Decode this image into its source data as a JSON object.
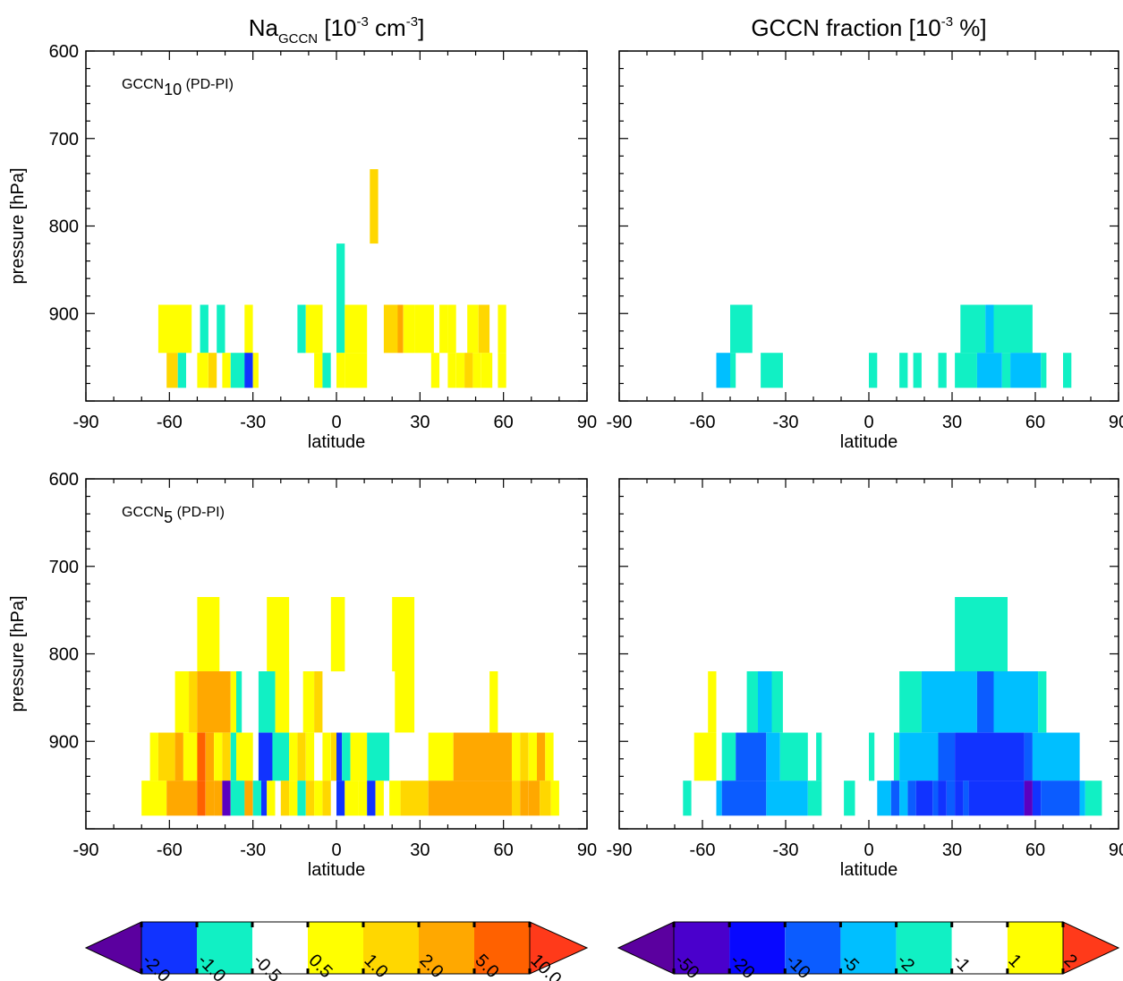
{
  "chart_data": [
    {
      "type": "heatmap",
      "panel": "top-left",
      "title": {
        "base": "Na",
        "sub": "GCCN",
        "rest": " [10",
        "sup1": "-3",
        "mid": " cm",
        "sup2": "-3",
        "end": "]"
      },
      "annotation": {
        "base": "GCCN",
        "sub": "10",
        "rest": " (PD-PI)"
      },
      "xlabel": "latitude",
      "ylabel": "pressure [hPa]",
      "xlim": [
        -90,
        90
      ],
      "ylim": [
        600,
        1000
      ],
      "xticks": [
        "-90",
        "-60",
        "-30",
        "0",
        "30",
        "60",
        "90"
      ],
      "yticks": [
        "600",
        "700",
        "800",
        "900"
      ],
      "scale": "na",
      "rects": [
        [
          -64,
          -52,
          890,
          945,
          "y"
        ],
        [
          -49,
          -46,
          890,
          945,
          "c"
        ],
        [
          -43,
          -40,
          890,
          945,
          "c"
        ],
        [
          -33,
          -30,
          890,
          945,
          "y"
        ],
        [
          -14,
          -11,
          890,
          945,
          "c"
        ],
        [
          -11,
          -5,
          890,
          945,
          "y"
        ],
        [
          0,
          3,
          820,
          945,
          "c"
        ],
        [
          3,
          11,
          890,
          945,
          "y"
        ],
        [
          12,
          15,
          735,
          820,
          "g"
        ],
        [
          17,
          22,
          890,
          945,
          "g"
        ],
        [
          22,
          24,
          890,
          945,
          "o"
        ],
        [
          24,
          28,
          890,
          945,
          "y"
        ],
        [
          28,
          35,
          890,
          945,
          "y"
        ],
        [
          37,
          40,
          890,
          945,
          "y"
        ],
        [
          40,
          43,
          890,
          945,
          "y"
        ],
        [
          47,
          51,
          890,
          945,
          "y"
        ],
        [
          51,
          55,
          890,
          945,
          "g"
        ],
        [
          58,
          61,
          890,
          945,
          "y"
        ],
        [
          -61,
          -57,
          945,
          985,
          "g"
        ],
        [
          -57,
          -54,
          945,
          985,
          "c"
        ],
        [
          -50,
          -46,
          945,
          985,
          "y"
        ],
        [
          -46,
          -43,
          945,
          985,
          "g"
        ],
        [
          -41,
          -38,
          945,
          985,
          "y"
        ],
        [
          -38,
          -33,
          945,
          985,
          "c"
        ],
        [
          -33,
          -30,
          945,
          985,
          "b"
        ],
        [
          -30,
          -28,
          945,
          985,
          "y"
        ],
        [
          -8,
          -5,
          945,
          985,
          "y"
        ],
        [
          -5,
          -2,
          945,
          985,
          "c"
        ],
        [
          0,
          3,
          945,
          985,
          "y"
        ],
        [
          3,
          11,
          945,
          985,
          "y"
        ],
        [
          34,
          37,
          945,
          985,
          "y"
        ],
        [
          40,
          43,
          945,
          985,
          "y"
        ],
        [
          43,
          46,
          945,
          985,
          "y"
        ],
        [
          46,
          49,
          945,
          985,
          "g"
        ],
        [
          49,
          52,
          945,
          985,
          "y"
        ],
        [
          52,
          56,
          945,
          985,
          "y"
        ],
        [
          58,
          61,
          945,
          985,
          "y"
        ]
      ]
    },
    {
      "type": "heatmap",
      "panel": "top-right",
      "title": {
        "base": "GCCN fraction [10",
        "sup1": "-3",
        "end": " %]"
      },
      "xlabel": "latitude",
      "xlim": [
        -90,
        90
      ],
      "ylim": [
        600,
        1000
      ],
      "xticks": [
        "-90",
        "-60",
        "-30",
        "0",
        "30",
        "60",
        "90"
      ],
      "scale": "frac",
      "rects": [
        [
          -50,
          -42,
          890,
          945,
          "c"
        ],
        [
          33,
          42,
          890,
          945,
          "c"
        ],
        [
          42,
          45,
          890,
          945,
          "s"
        ],
        [
          45,
          59,
          890,
          945,
          "c"
        ],
        [
          -55,
          -50,
          945,
          985,
          "s"
        ],
        [
          -50,
          -48,
          945,
          985,
          "c"
        ],
        [
          -39,
          -31,
          945,
          985,
          "c"
        ],
        [
          0,
          3,
          945,
          985,
          "c"
        ],
        [
          11,
          14,
          945,
          985,
          "c"
        ],
        [
          16,
          19,
          945,
          985,
          "c"
        ],
        [
          25,
          28,
          945,
          985,
          "c"
        ],
        [
          31,
          39,
          945,
          985,
          "c"
        ],
        [
          39,
          48,
          945,
          985,
          "s"
        ],
        [
          48,
          51,
          945,
          985,
          "c"
        ],
        [
          51,
          62,
          945,
          985,
          "s"
        ],
        [
          62,
          64,
          945,
          985,
          "c"
        ],
        [
          70,
          73,
          945,
          985,
          "c"
        ]
      ]
    },
    {
      "type": "heatmap",
      "panel": "bottom-left",
      "annotation": {
        "base": "GCCN",
        "sub": "5",
        "rest": " (PD-PI)"
      },
      "xlabel": "latitude",
      "ylabel": "pressure [hPa]",
      "xlim": [
        -90,
        90
      ],
      "ylim": [
        600,
        1000
      ],
      "xticks": [
        "-90",
        "-60",
        "-30",
        "0",
        "30",
        "60",
        "90"
      ],
      "yticks": [
        "600",
        "700",
        "800",
        "900"
      ],
      "scale": "na",
      "rects": [
        [
          -50,
          -42,
          735,
          820,
          "y"
        ],
        [
          -25,
          -17,
          735,
          820,
          "y"
        ],
        [
          -2,
          3,
          735,
          820,
          "y"
        ],
        [
          20,
          28,
          735,
          820,
          "y"
        ],
        [
          -58,
          -53,
          820,
          890,
          "y"
        ],
        [
          -53,
          -50,
          820,
          890,
          "g"
        ],
        [
          -50,
          -38,
          820,
          890,
          "o"
        ],
        [
          -38,
          -36,
          820,
          890,
          "y"
        ],
        [
          -36,
          -34,
          820,
          890,
          "c"
        ],
        [
          -28,
          -22,
          820,
          890,
          "c"
        ],
        [
          -22,
          -17,
          820,
          890,
          "y"
        ],
        [
          -12,
          -8,
          820,
          890,
          "y"
        ],
        [
          -8,
          -5,
          820,
          890,
          "g"
        ],
        [
          21,
          28,
          820,
          890,
          "y"
        ],
        [
          55,
          58,
          820,
          890,
          "y"
        ],
        [
          -67,
          -64,
          890,
          945,
          "y"
        ],
        [
          -64,
          -58,
          890,
          945,
          "g"
        ],
        [
          -58,
          -55,
          890,
          945,
          "o"
        ],
        [
          -55,
          -50,
          890,
          945,
          "y"
        ],
        [
          -50,
          -47,
          890,
          945,
          "r"
        ],
        [
          -47,
          -44,
          890,
          945,
          "o"
        ],
        [
          -44,
          -41,
          890,
          945,
          "y"
        ],
        [
          -41,
          -38,
          890,
          945,
          "g"
        ],
        [
          -38,
          -36,
          890,
          945,
          "c"
        ],
        [
          -36,
          -30,
          890,
          945,
          "y"
        ],
        [
          -28,
          -23,
          890,
          945,
          "b"
        ],
        [
          -23,
          -17,
          890,
          945,
          "c"
        ],
        [
          -17,
          -14,
          890,
          945,
          "y"
        ],
        [
          -14,
          -11,
          890,
          945,
          "g"
        ],
        [
          -11,
          -8,
          890,
          945,
          "y"
        ],
        [
          -5,
          -2,
          890,
          945,
          "y"
        ],
        [
          -2,
          0,
          890,
          945,
          "g"
        ],
        [
          0,
          2,
          890,
          945,
          "b"
        ],
        [
          2,
          5,
          890,
          945,
          "c"
        ],
        [
          5,
          11,
          890,
          945,
          "y"
        ],
        [
          11,
          19,
          890,
          945,
          "c"
        ],
        [
          33,
          42,
          890,
          945,
          "y"
        ],
        [
          42,
          63,
          890,
          945,
          "o"
        ],
        [
          63,
          66,
          890,
          945,
          "y"
        ],
        [
          66,
          69,
          890,
          945,
          "g"
        ],
        [
          69,
          72,
          890,
          945,
          "y"
        ],
        [
          72,
          75,
          890,
          945,
          "o"
        ],
        [
          75,
          78,
          890,
          945,
          "y"
        ],
        [
          -70,
          -61,
          945,
          985,
          "y"
        ],
        [
          -61,
          -50,
          945,
          985,
          "o"
        ],
        [
          -50,
          -47,
          945,
          985,
          "r"
        ],
        [
          -47,
          -44,
          945,
          985,
          "o"
        ],
        [
          -44,
          -41,
          945,
          985,
          "o"
        ],
        [
          -41,
          -38,
          945,
          985,
          "v"
        ],
        [
          -38,
          -33,
          945,
          985,
          "c"
        ],
        [
          -33,
          -30,
          945,
          985,
          "o"
        ],
        [
          -30,
          -27,
          945,
          985,
          "c"
        ],
        [
          -27,
          -25,
          945,
          985,
          "b"
        ],
        [
          -25,
          -22,
          945,
          985,
          "y"
        ],
        [
          -20,
          -17,
          945,
          985,
          "g"
        ],
        [
          -17,
          -14,
          945,
          985,
          "y"
        ],
        [
          -14,
          -11,
          945,
          985,
          "c"
        ],
        [
          -11,
          -8,
          945,
          985,
          "g"
        ],
        [
          -8,
          -5,
          945,
          985,
          "y"
        ],
        [
          -5,
          -2,
          945,
          985,
          "g"
        ],
        [
          0,
          3,
          945,
          985,
          "b"
        ],
        [
          3,
          8,
          945,
          985,
          "y"
        ],
        [
          8,
          11,
          945,
          985,
          "y"
        ],
        [
          11,
          14,
          945,
          985,
          "b"
        ],
        [
          14,
          17,
          945,
          985,
          "y"
        ],
        [
          19,
          23,
          945,
          985,
          "y"
        ],
        [
          23,
          33,
          945,
          985,
          "g"
        ],
        [
          33,
          63,
          945,
          985,
          "o"
        ],
        [
          63,
          66,
          945,
          985,
          "g"
        ],
        [
          66,
          69,
          945,
          985,
          "o"
        ],
        [
          69,
          73,
          945,
          985,
          "o"
        ],
        [
          73,
          77,
          945,
          985,
          "g"
        ],
        [
          77,
          80,
          945,
          985,
          "y"
        ]
      ]
    },
    {
      "type": "heatmap",
      "panel": "bottom-right",
      "xlabel": "latitude",
      "xlim": [
        -90,
        90
      ],
      "ylim": [
        600,
        1000
      ],
      "xticks": [
        "-90",
        "-60",
        "-30",
        "0",
        "30",
        "60",
        "90"
      ],
      "scale": "frac",
      "rects": [
        [
          31,
          50,
          735,
          820,
          "c"
        ],
        [
          -58,
          -55,
          820,
          890,
          "y"
        ],
        [
          -44,
          -40,
          820,
          890,
          "c"
        ],
        [
          -40,
          -35,
          820,
          890,
          "s"
        ],
        [
          -35,
          -31,
          820,
          890,
          "c"
        ],
        [
          11,
          19,
          820,
          890,
          "c"
        ],
        [
          19,
          39,
          820,
          890,
          "s"
        ],
        [
          39,
          45,
          820,
          890,
          "m"
        ],
        [
          45,
          61,
          820,
          890,
          "s"
        ],
        [
          61,
          64,
          820,
          890,
          "c"
        ],
        [
          -63,
          -55,
          890,
          945,
          "y"
        ],
        [
          -53,
          -48,
          890,
          945,
          "c"
        ],
        [
          -48,
          -37,
          890,
          945,
          "m"
        ],
        [
          -37,
          -32,
          890,
          945,
          "s"
        ],
        [
          -32,
          -22,
          890,
          945,
          "c"
        ],
        [
          -19,
          -17,
          890,
          945,
          "c"
        ],
        [
          0,
          2,
          890,
          945,
          "c"
        ],
        [
          9,
          11,
          890,
          945,
          "c"
        ],
        [
          11,
          25,
          890,
          945,
          "s"
        ],
        [
          25,
          31,
          890,
          945,
          "m"
        ],
        [
          31,
          56,
          890,
          945,
          "b"
        ],
        [
          56,
          59,
          890,
          945,
          "m"
        ],
        [
          59,
          76,
          890,
          945,
          "s"
        ],
        [
          -67,
          -64,
          945,
          985,
          "c"
        ],
        [
          -55,
          -53,
          945,
          985,
          "s"
        ],
        [
          -53,
          -37,
          945,
          985,
          "m"
        ],
        [
          -37,
          -22,
          945,
          985,
          "s"
        ],
        [
          -22,
          -17,
          945,
          985,
          "c"
        ],
        [
          -9,
          -5,
          945,
          985,
          "c"
        ],
        [
          3,
          8,
          945,
          985,
          "s"
        ],
        [
          8,
          11,
          945,
          985,
          "m"
        ],
        [
          11,
          14,
          945,
          985,
          "s"
        ],
        [
          14,
          17,
          945,
          985,
          "m"
        ],
        [
          17,
          23,
          945,
          985,
          "b"
        ],
        [
          23,
          25,
          945,
          985,
          "m"
        ],
        [
          25,
          28,
          945,
          985,
          "b"
        ],
        [
          28,
          31,
          945,
          985,
          "m"
        ],
        [
          31,
          34,
          945,
          985,
          "b"
        ],
        [
          34,
          36,
          945,
          985,
          "m"
        ],
        [
          36,
          56,
          945,
          985,
          "b"
        ],
        [
          56,
          59,
          945,
          985,
          "v"
        ],
        [
          59,
          62,
          945,
          985,
          "b"
        ],
        [
          62,
          76,
          945,
          985,
          "m"
        ],
        [
          76,
          78,
          945,
          985,
          "s"
        ],
        [
          78,
          84,
          945,
          985,
          "c"
        ]
      ]
    }
  ],
  "colorbars": {
    "na": {
      "left_color": "#5b009f",
      "right_color": "#ff3a1a",
      "segment_colors": [
        "#1133ff",
        "#11f0c4",
        "#ffffff",
        "#ffff00",
        "#ffd700",
        "#ffa800",
        "#ff6100"
      ],
      "labels": [
        "-2.0",
        "-1.0",
        "-0.5",
        "0.5",
        "1.0",
        "2.0",
        "5.0",
        "10.0"
      ]
    },
    "frac": {
      "left_color": "#5b009f",
      "right_color": "#ff3a1a",
      "segment_colors": [
        "#4a00cc",
        "#0808ff",
        "#0b5cff",
        "#00bfff",
        "#11f0c4",
        "#ffffff",
        "#ffff00"
      ],
      "labels": [
        "-50",
        "-20",
        "-10",
        "-5",
        "-2",
        "-1",
        "1",
        "2"
      ]
    }
  },
  "palette": {
    "v": "#5b00c0",
    "b": "#1133ff",
    "m": "#0b5cff",
    "s": "#00bfff",
    "c": "#11f0c4",
    "y": "#ffff00",
    "g": "#ffd700",
    "o": "#ffa800",
    "r": "#ff6100"
  }
}
